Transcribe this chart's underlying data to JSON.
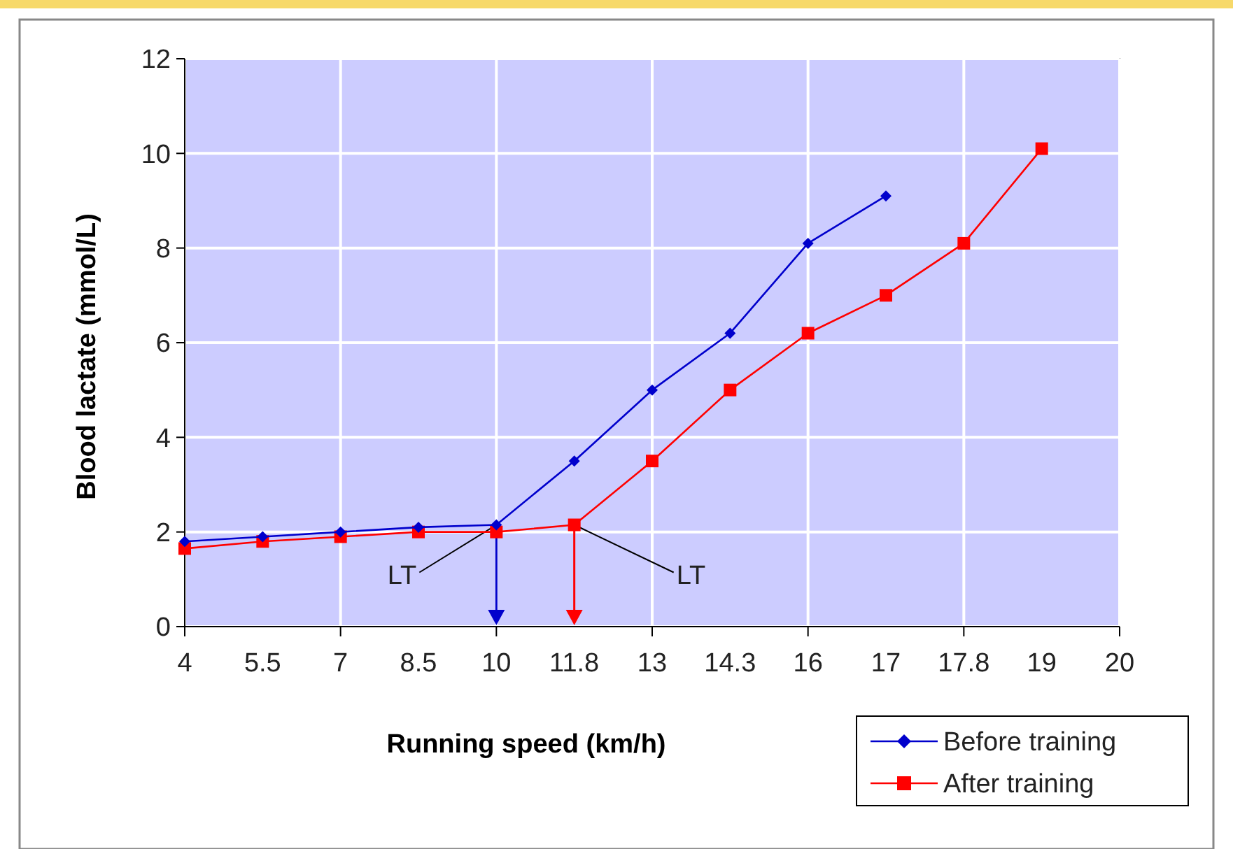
{
  "chart_data": {
    "type": "line",
    "xlabel": "Running speed (km/h)",
    "ylabel": "Blood lactate (mmol/L)",
    "categories": [
      "4",
      "5.5",
      "7",
      "8.5",
      "10",
      "11.8",
      "13",
      "14.3",
      "16",
      "17",
      "17.8",
      "19",
      "20"
    ],
    "series": [
      {
        "name": "Before training",
        "color": "#0000cc",
        "marker": "diamond",
        "values": [
          1.8,
          1.9,
          2.0,
          2.1,
          2.15,
          3.5,
          5.0,
          6.2,
          8.1,
          9.1,
          null,
          null,
          null
        ]
      },
      {
        "name": "After training",
        "color": "#ff0000",
        "marker": "square",
        "values": [
          1.65,
          1.8,
          1.9,
          2.0,
          2.0,
          2.15,
          3.5,
          5.0,
          6.2,
          7.0,
          8.1,
          10.1,
          null
        ]
      }
    ],
    "ylim": [
      0,
      12
    ],
    "yticks": [
      0,
      2,
      4,
      6,
      8,
      10,
      12
    ],
    "grid": true,
    "legend": "bottom right",
    "annotations": [
      {
        "text": "LT",
        "x": "10",
        "y": 2.15
      },
      {
        "text": "LT",
        "x": "11.8",
        "y": 2.15
      }
    ]
  }
}
